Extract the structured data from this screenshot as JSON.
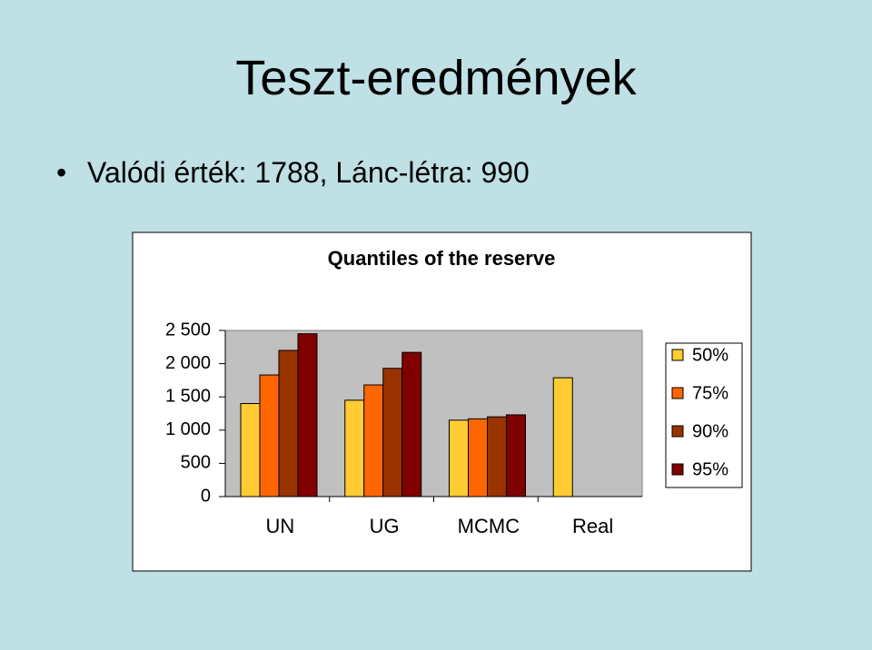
{
  "slide": {
    "title": "Teszt-eredmények",
    "bullets": [
      "Valódi érték: 1788, Lánc-létra: 990"
    ]
  },
  "chart_data": {
    "type": "bar",
    "title": "Quantiles of the reserve",
    "categories": [
      "UN",
      "UG",
      "MCMC",
      "Real"
    ],
    "series": [
      {
        "name": "50%",
        "color": "#ffcc33",
        "values": [
          1400,
          1450,
          1150,
          1788
        ]
      },
      {
        "name": "75%",
        "color": "#ff6600",
        "values": [
          1830,
          1680,
          1170,
          null
        ]
      },
      {
        "name": "90%",
        "color": "#993300",
        "values": [
          2200,
          1930,
          1200,
          null
        ]
      },
      {
        "name": "95%",
        "color": "#800000",
        "values": [
          2450,
          2170,
          1230,
          null
        ]
      }
    ],
    "ylim": [
      0,
      2500
    ],
    "yticks": [
      0,
      500,
      {
        "value": 1000,
        "label": "1 000"
      },
      {
        "value": 1500,
        "label": "1 500"
      },
      {
        "value": 2000,
        "label": "2 000"
      },
      {
        "value": 2500,
        "label": "2 500"
      }
    ],
    "legend": "right"
  }
}
